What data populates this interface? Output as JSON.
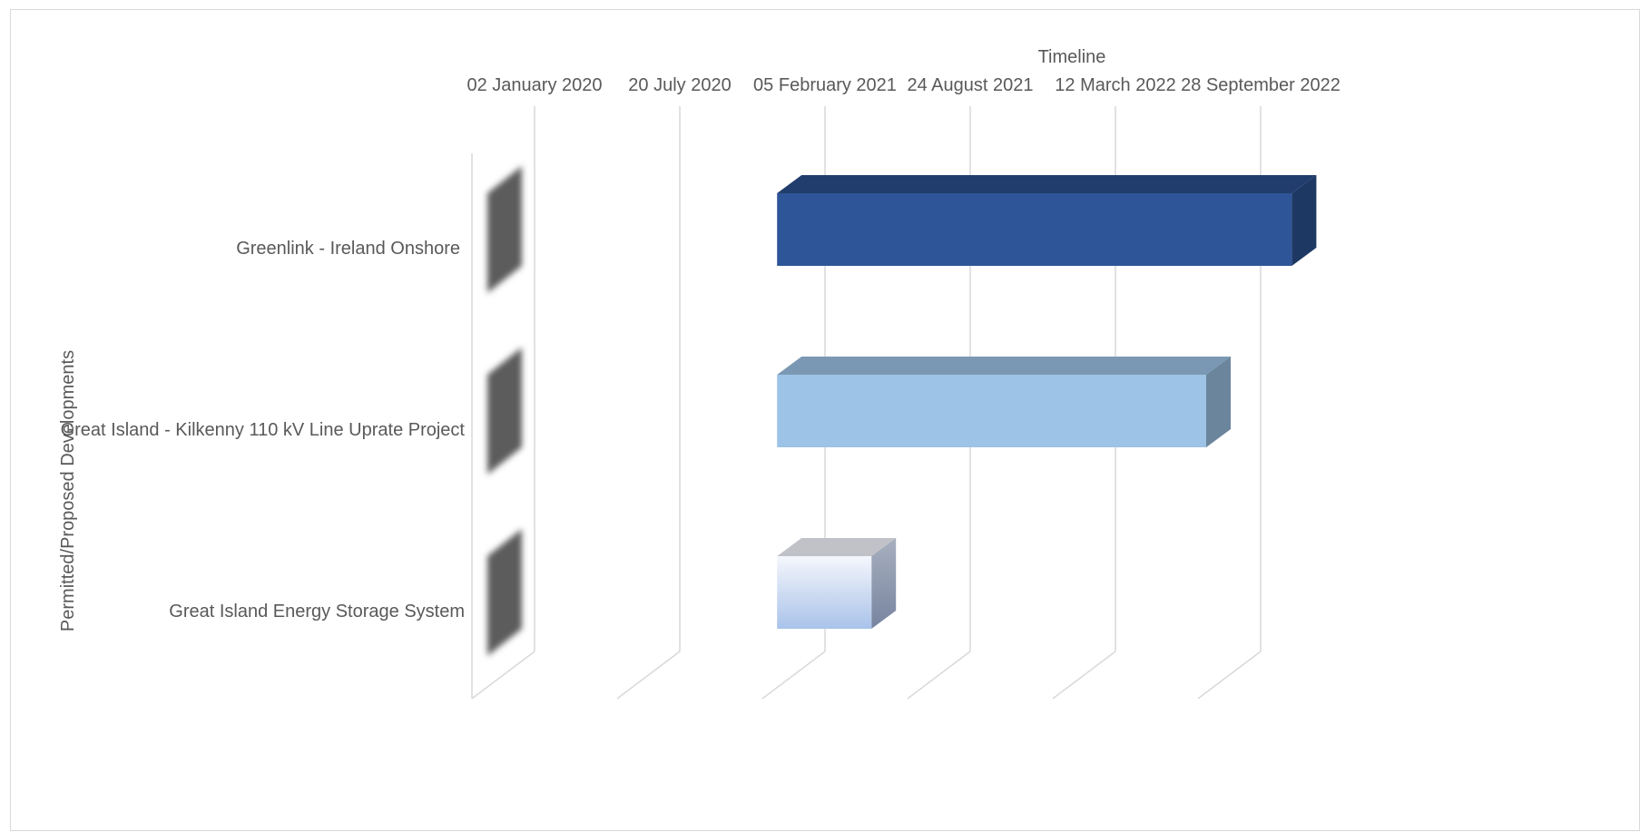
{
  "chart_data": {
    "type": "bar",
    "orientation": "horizontal-3d-gantt",
    "title": "",
    "xlabel": "Timeline",
    "ylabel": "Permitted/Proposed Developments",
    "x_axis_position": "top",
    "x_ticks": [
      "02 January 2020",
      "20 July 2020",
      "05 February 2021",
      "24 August 2021",
      "12 March 2022",
      "28 September 2022"
    ],
    "xlim": [
      "2020-01-02",
      "2022-09-28"
    ],
    "grid": true,
    "legend": "none",
    "categories": [
      "Greenlink - Ireland Onshore",
      "Great Island - Kilkenny 110 kV Line Uprate Project",
      "Great Island Energy Storage System"
    ],
    "series": [
      {
        "role": "start",
        "color": "#5b5b5b",
        "values": [
          "2020-01-02",
          "2020-01-02",
          "2020-01-02"
        ]
      },
      {
        "role": "duration",
        "colors": [
          "#2e5597",
          "#9dc3e6",
          "#b4c7e7"
        ],
        "start": [
          "2020-12-01",
          "2020-12-01",
          "2020-12-01"
        ],
        "end": [
          "2022-11-10",
          "2022-07-15",
          "2021-04-10"
        ]
      }
    ]
  }
}
